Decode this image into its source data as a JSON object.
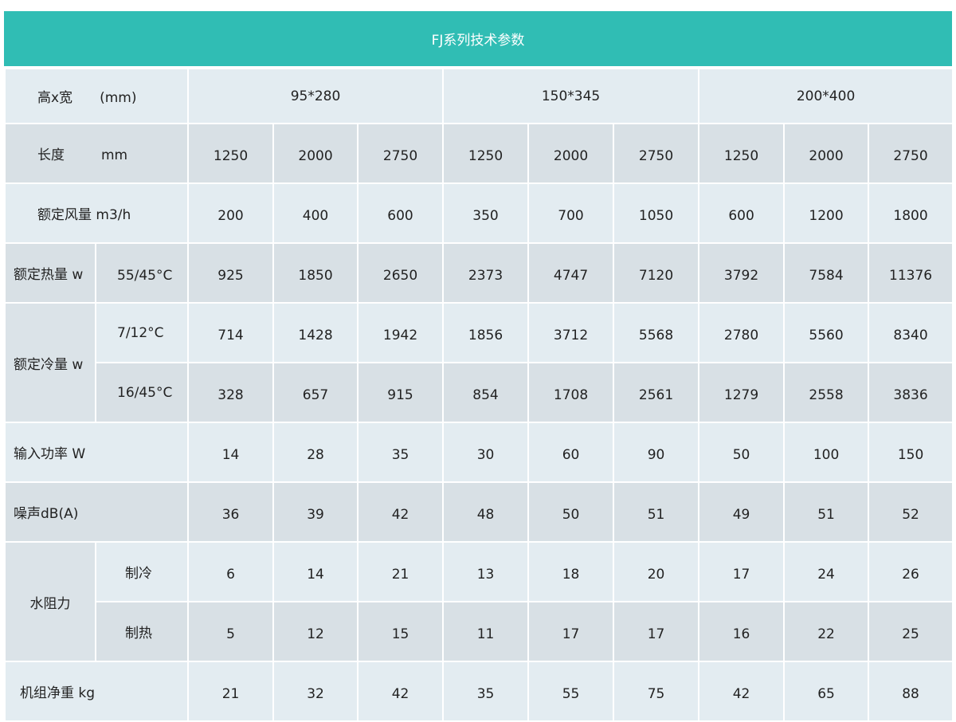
{
  "title": "FJ系列技术参数",
  "size_row": {
    "label": "高x宽",
    "unit": "(mm)",
    "groups": [
      "95*280",
      "150*345",
      "200*400"
    ]
  },
  "length_row": {
    "label": "长度",
    "unit": "mm",
    "values": [
      "1250",
      "2000",
      "2750",
      "1250",
      "2000",
      "2750",
      "1250",
      "2000",
      "2750"
    ]
  },
  "airflow_row": {
    "label": "额定风量 m3/h",
    "values": [
      "200",
      "400",
      "600",
      "350",
      "700",
      "1050",
      "600",
      "1200",
      "1800"
    ]
  },
  "heating_row": {
    "label": "额定热量 w",
    "sub": "55/45°C",
    "values": [
      "925",
      "1850",
      "2650",
      "2373",
      "4747",
      "7120",
      "3792",
      "7584",
      "11376"
    ]
  },
  "cooling": {
    "label": "额定冷量 w",
    "rows": [
      {
        "sub": "7/12°C",
        "values": [
          "714",
          "1428",
          "1942",
          "1856",
          "3712",
          "5568",
          "2780",
          "5560",
          "8340"
        ]
      },
      {
        "sub": "16/45°C",
        "values": [
          "328",
          "657",
          "915",
          "854",
          "1708",
          "2561",
          "1279",
          "2558",
          "3836"
        ]
      }
    ]
  },
  "power_row": {
    "label": "输入功率 W",
    "values": [
      "14",
      "28",
      "35",
      "30",
      "60",
      "90",
      "50",
      "100",
      "150"
    ]
  },
  "noise_row": {
    "label": "噪声dB(A)",
    "values": [
      "36",
      "39",
      "42",
      "48",
      "50",
      "51",
      "49",
      "51",
      "52"
    ]
  },
  "water_resistance": {
    "label": "水阻力",
    "rows": [
      {
        "sub": "制冷",
        "values": [
          "6",
          "14",
          "21",
          "13",
          "18",
          "20",
          "17",
          "24",
          "26"
        ]
      },
      {
        "sub": "制热",
        "values": [
          "5",
          "12",
          "15",
          "11",
          "17",
          "17",
          "16",
          "22",
          "25"
        ]
      }
    ]
  },
  "weight_row": {
    "label": "机组净重 kg",
    "values": [
      "21",
      "32",
      "42",
      "35",
      "55",
      "75",
      "42",
      "65",
      "88"
    ]
  },
  "colors": {
    "header": "#30bdb4",
    "row_light": "#e3ecf1",
    "row_dark": "#d8e0e5"
  }
}
